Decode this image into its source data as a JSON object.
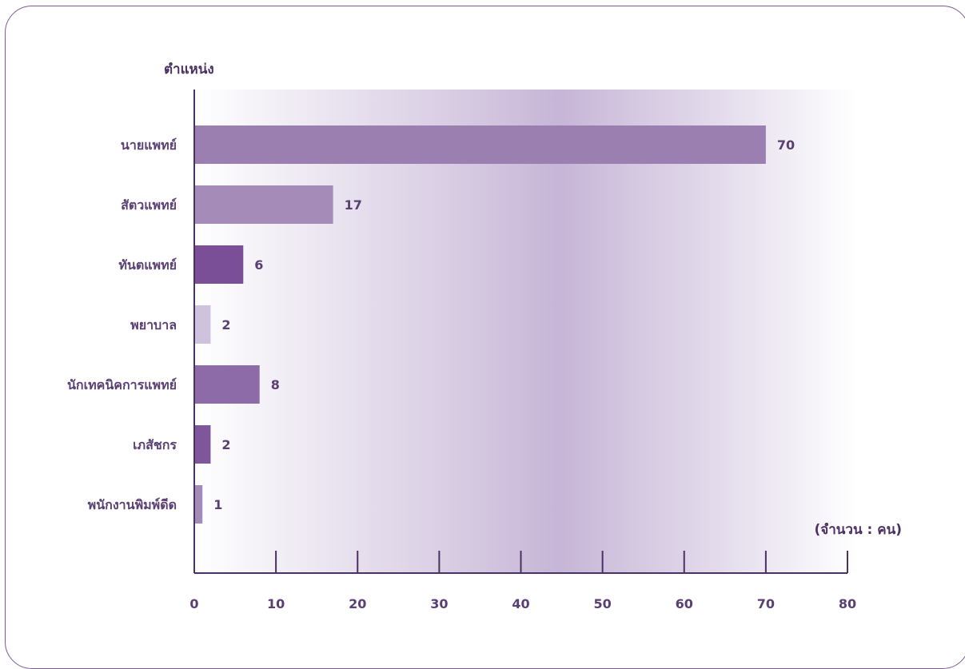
{
  "chart_data": {
    "type": "bar",
    "orientation": "horizontal",
    "ylabel": "ตำแหน่ง",
    "unit_label": "(จำนวน : คน)",
    "categories": [
      "นายแพทย์",
      "สัตวแพทย์",
      "ทันตแพทย์",
      "พยาบาล",
      "นักเทคนิคการแพทย์",
      "เภสัชกร",
      "พนักงานพิมพ์ดีด"
    ],
    "values": [
      70,
      17,
      6,
      2,
      8,
      2,
      1
    ],
    "value_labels": [
      "70",
      "17",
      "6",
      "2",
      "8",
      "2",
      "1"
    ],
    "bar_colors": [
      "#9b7fb1",
      "#a58bb8",
      "#7b4f98",
      "#cfc2dc",
      "#8c6ba8",
      "#7e579b",
      "#a28bb6"
    ],
    "xlim": [
      0,
      80
    ],
    "xticks": [
      0,
      10,
      20,
      30,
      40,
      50,
      60,
      70,
      80
    ],
    "xtick_labels": [
      "0",
      "10",
      "20",
      "30",
      "40",
      "50",
      "60",
      "70",
      "80"
    ],
    "grid": false,
    "legend": "none"
  },
  "colors": {
    "text": "#5a3f73",
    "axis": "#4a3063",
    "frame": "#7b5a94",
    "band": "#c8b8d8"
  }
}
